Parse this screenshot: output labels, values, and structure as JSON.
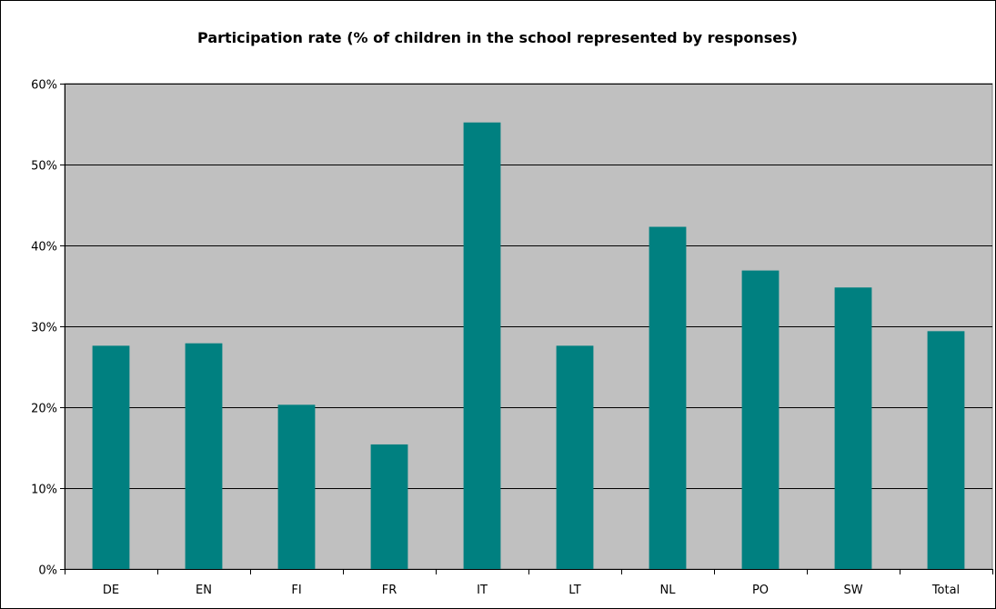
{
  "chart_data": {
    "type": "bar",
    "title": "Participation rate (% of children in the school represented by responses)",
    "xlabel": "",
    "ylabel": "",
    "categories": [
      "DE",
      "EN",
      "FI",
      "FR",
      "IT",
      "LT",
      "NL",
      "PO",
      "SW",
      "Total"
    ],
    "values": [
      27.6,
      27.9,
      20.3,
      15.4,
      55.2,
      27.6,
      42.3,
      36.9,
      34.8,
      29.4
    ],
    "ylim": [
      0,
      60
    ],
    "yticks": [
      0,
      10,
      20,
      30,
      40,
      50,
      60
    ],
    "ytick_labels": [
      "0%",
      "10%",
      "20%",
      "30%",
      "40%",
      "50%",
      "60%"
    ],
    "grid": true,
    "legend": "none",
    "colors": {
      "bar": "#008080",
      "plot_background": "#c0c0c0",
      "gridline": "#000000"
    }
  }
}
